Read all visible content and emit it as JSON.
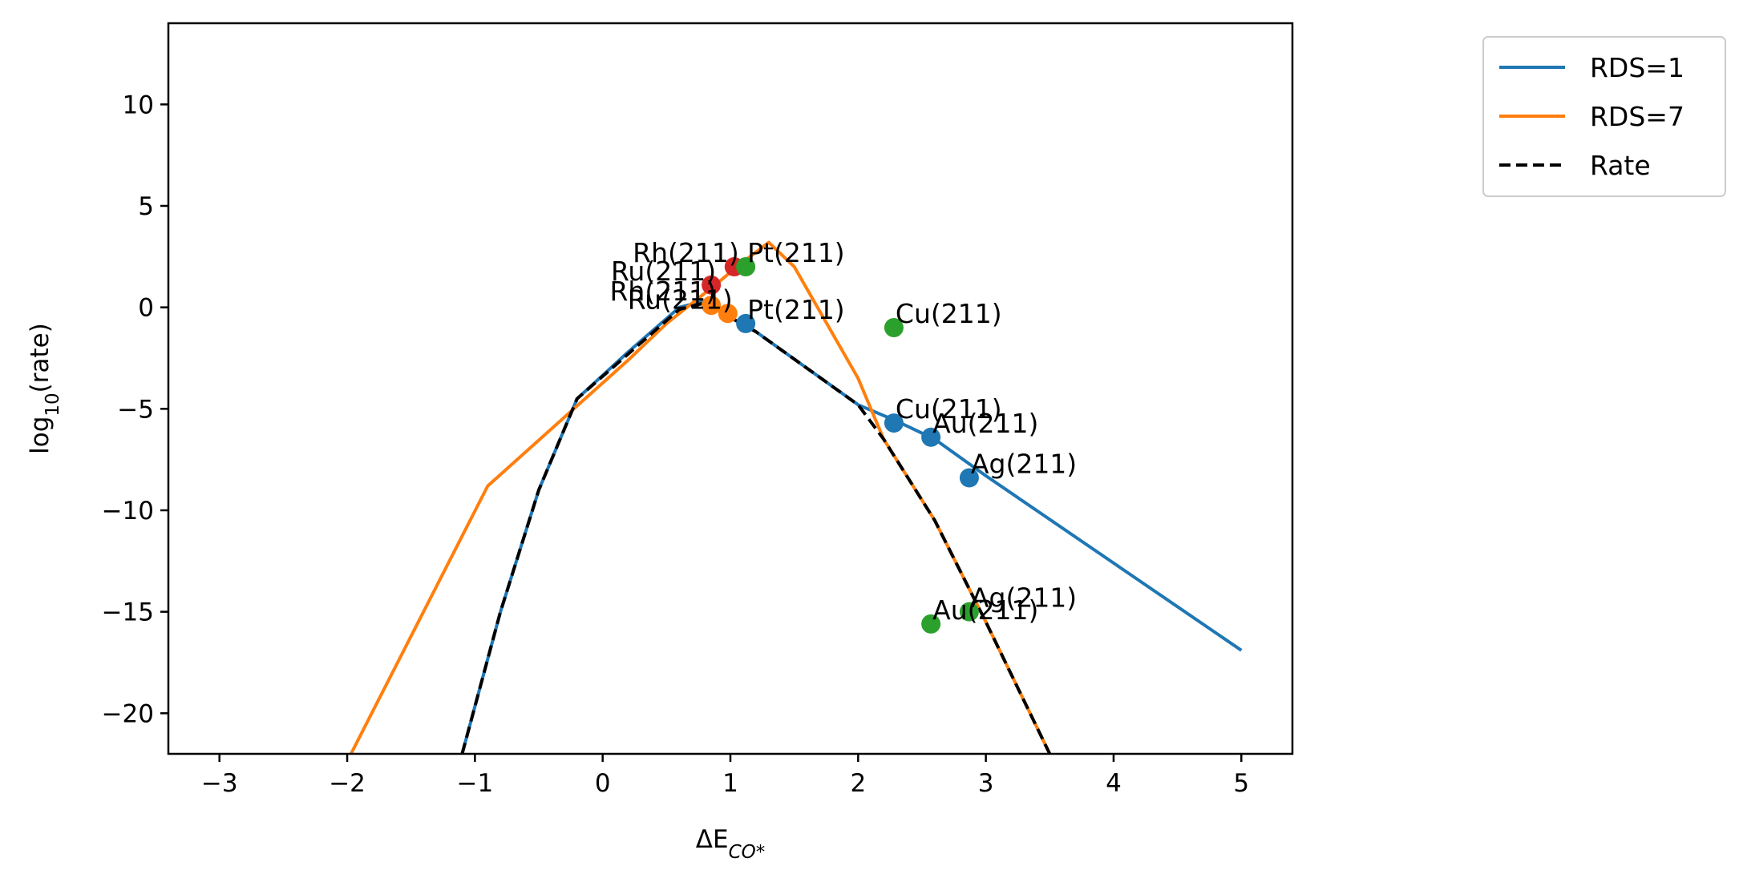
{
  "chart_data": {
    "type": "line",
    "title": "",
    "xlabel": {
      "base": "ΔE",
      "sub": "CO*"
    },
    "ylabel": {
      "base": "log",
      "sub": "10",
      "suffix": "(rate)"
    },
    "xlim": [
      -3.4,
      5.4
    ],
    "ylim": [
      -22,
      14
    ],
    "xticks": [
      -3,
      -2,
      -1,
      0,
      1,
      2,
      3,
      4,
      5
    ],
    "yticks": [
      10,
      5,
      0,
      -5,
      -10,
      -15,
      -20
    ],
    "xtick_labels": [
      "−3",
      "−2",
      "−1",
      "0",
      "1",
      "2",
      "3",
      "4",
      "5"
    ],
    "ytick_labels": [
      "10",
      "5",
      "0",
      "−5",
      "−10",
      "−15",
      "−20"
    ],
    "grid": false,
    "legend_position": "outside-top-right",
    "series": [
      {
        "name": "RDS=1",
        "color": "#1f77b4",
        "style": "solid",
        "points": [
          [
            -1.1,
            -22
          ],
          [
            -0.8,
            -15
          ],
          [
            -0.5,
            -9
          ],
          [
            -0.2,
            -4.5
          ],
          [
            0.2,
            -2.2
          ],
          [
            0.6,
            0.0
          ],
          [
            0.85,
            0.4
          ],
          [
            1.0,
            -0.5
          ],
          [
            1.2,
            -1.2
          ],
          [
            1.6,
            -3.0
          ],
          [
            2.0,
            -4.8
          ],
          [
            2.3,
            -5.6
          ],
          [
            2.6,
            -6.5
          ],
          [
            3.0,
            -8.3
          ],
          [
            4.0,
            -12.6
          ],
          [
            5.0,
            -16.9
          ]
        ]
      },
      {
        "name": "RDS=7",
        "color": "#ff7f0e",
        "style": "solid",
        "points": [
          [
            -1.97,
            -22
          ],
          [
            -0.9,
            -8.8
          ],
          [
            0.2,
            -2.6
          ],
          [
            0.5,
            -0.8
          ],
          [
            0.7,
            0.2
          ],
          [
            0.9,
            1.2
          ],
          [
            1.05,
            2.0
          ],
          [
            1.3,
            3.2
          ],
          [
            1.5,
            2.0
          ],
          [
            2.0,
            -3.5
          ],
          [
            2.2,
            -6.5
          ],
          [
            2.6,
            -10.5
          ],
          [
            3.0,
            -15.5
          ],
          [
            3.5,
            -22
          ]
        ]
      },
      {
        "name": "Rate",
        "color": "#000000",
        "style": "dashed",
        "points": [
          [
            -1.1,
            -22
          ],
          [
            -0.8,
            -15
          ],
          [
            -0.5,
            -9
          ],
          [
            -0.2,
            -4.5
          ],
          [
            0.2,
            -2.3
          ],
          [
            0.6,
            -0.1
          ],
          [
            0.85,
            0.3
          ],
          [
            1.0,
            -0.5
          ],
          [
            1.2,
            -1.2
          ],
          [
            1.6,
            -3.0
          ],
          [
            2.0,
            -4.8
          ],
          [
            2.2,
            -6.5
          ],
          [
            2.6,
            -10.5
          ],
          [
            3.0,
            -15.5
          ],
          [
            3.5,
            -22
          ]
        ]
      }
    ],
    "points": [
      {
        "label": "Rh(211)",
        "x": 1.03,
        "y": 2.0,
        "color": "#d62728",
        "label_align": "end"
      },
      {
        "label": "Ru(211)",
        "x": 0.85,
        "y": 1.1,
        "color": "#d62728",
        "label_align": "end"
      },
      {
        "label": "Pt(211)",
        "x": 1.12,
        "y": 2.0,
        "color": "#2ca02c",
        "label_align": "start"
      },
      {
        "label": "Rh(211)",
        "x": 0.85,
        "y": 0.1,
        "color": "#ff7f0e",
        "label_align": "end"
      },
      {
        "label": "Ru(211)",
        "x": 0.98,
        "y": -0.3,
        "color": "#ff7f0e",
        "label_align": "end"
      },
      {
        "label": "Pt(211)",
        "x": 1.12,
        "y": -0.8,
        "color": "#1f77b4",
        "label_align": "start"
      },
      {
        "label": "Cu(211)",
        "x": 2.28,
        "y": -1.0,
        "color": "#2ca02c",
        "label_align": "start"
      },
      {
        "label": "Cu(211)",
        "x": 2.28,
        "y": -5.7,
        "color": "#1f77b4",
        "label_align": "start"
      },
      {
        "label": "Au(211)",
        "x": 2.57,
        "y": -6.4,
        "color": "#1f77b4",
        "label_align": "start"
      },
      {
        "label": "Ag(211)",
        "x": 2.87,
        "y": -8.4,
        "color": "#1f77b4",
        "label_align": "start"
      },
      {
        "label": "Ag(211)",
        "x": 2.87,
        "y": -15.0,
        "color": "#2ca02c",
        "label_align": "start"
      },
      {
        "label": "Au(211)",
        "x": 2.57,
        "y": -15.6,
        "color": "#2ca02c",
        "label_align": "start"
      }
    ]
  }
}
